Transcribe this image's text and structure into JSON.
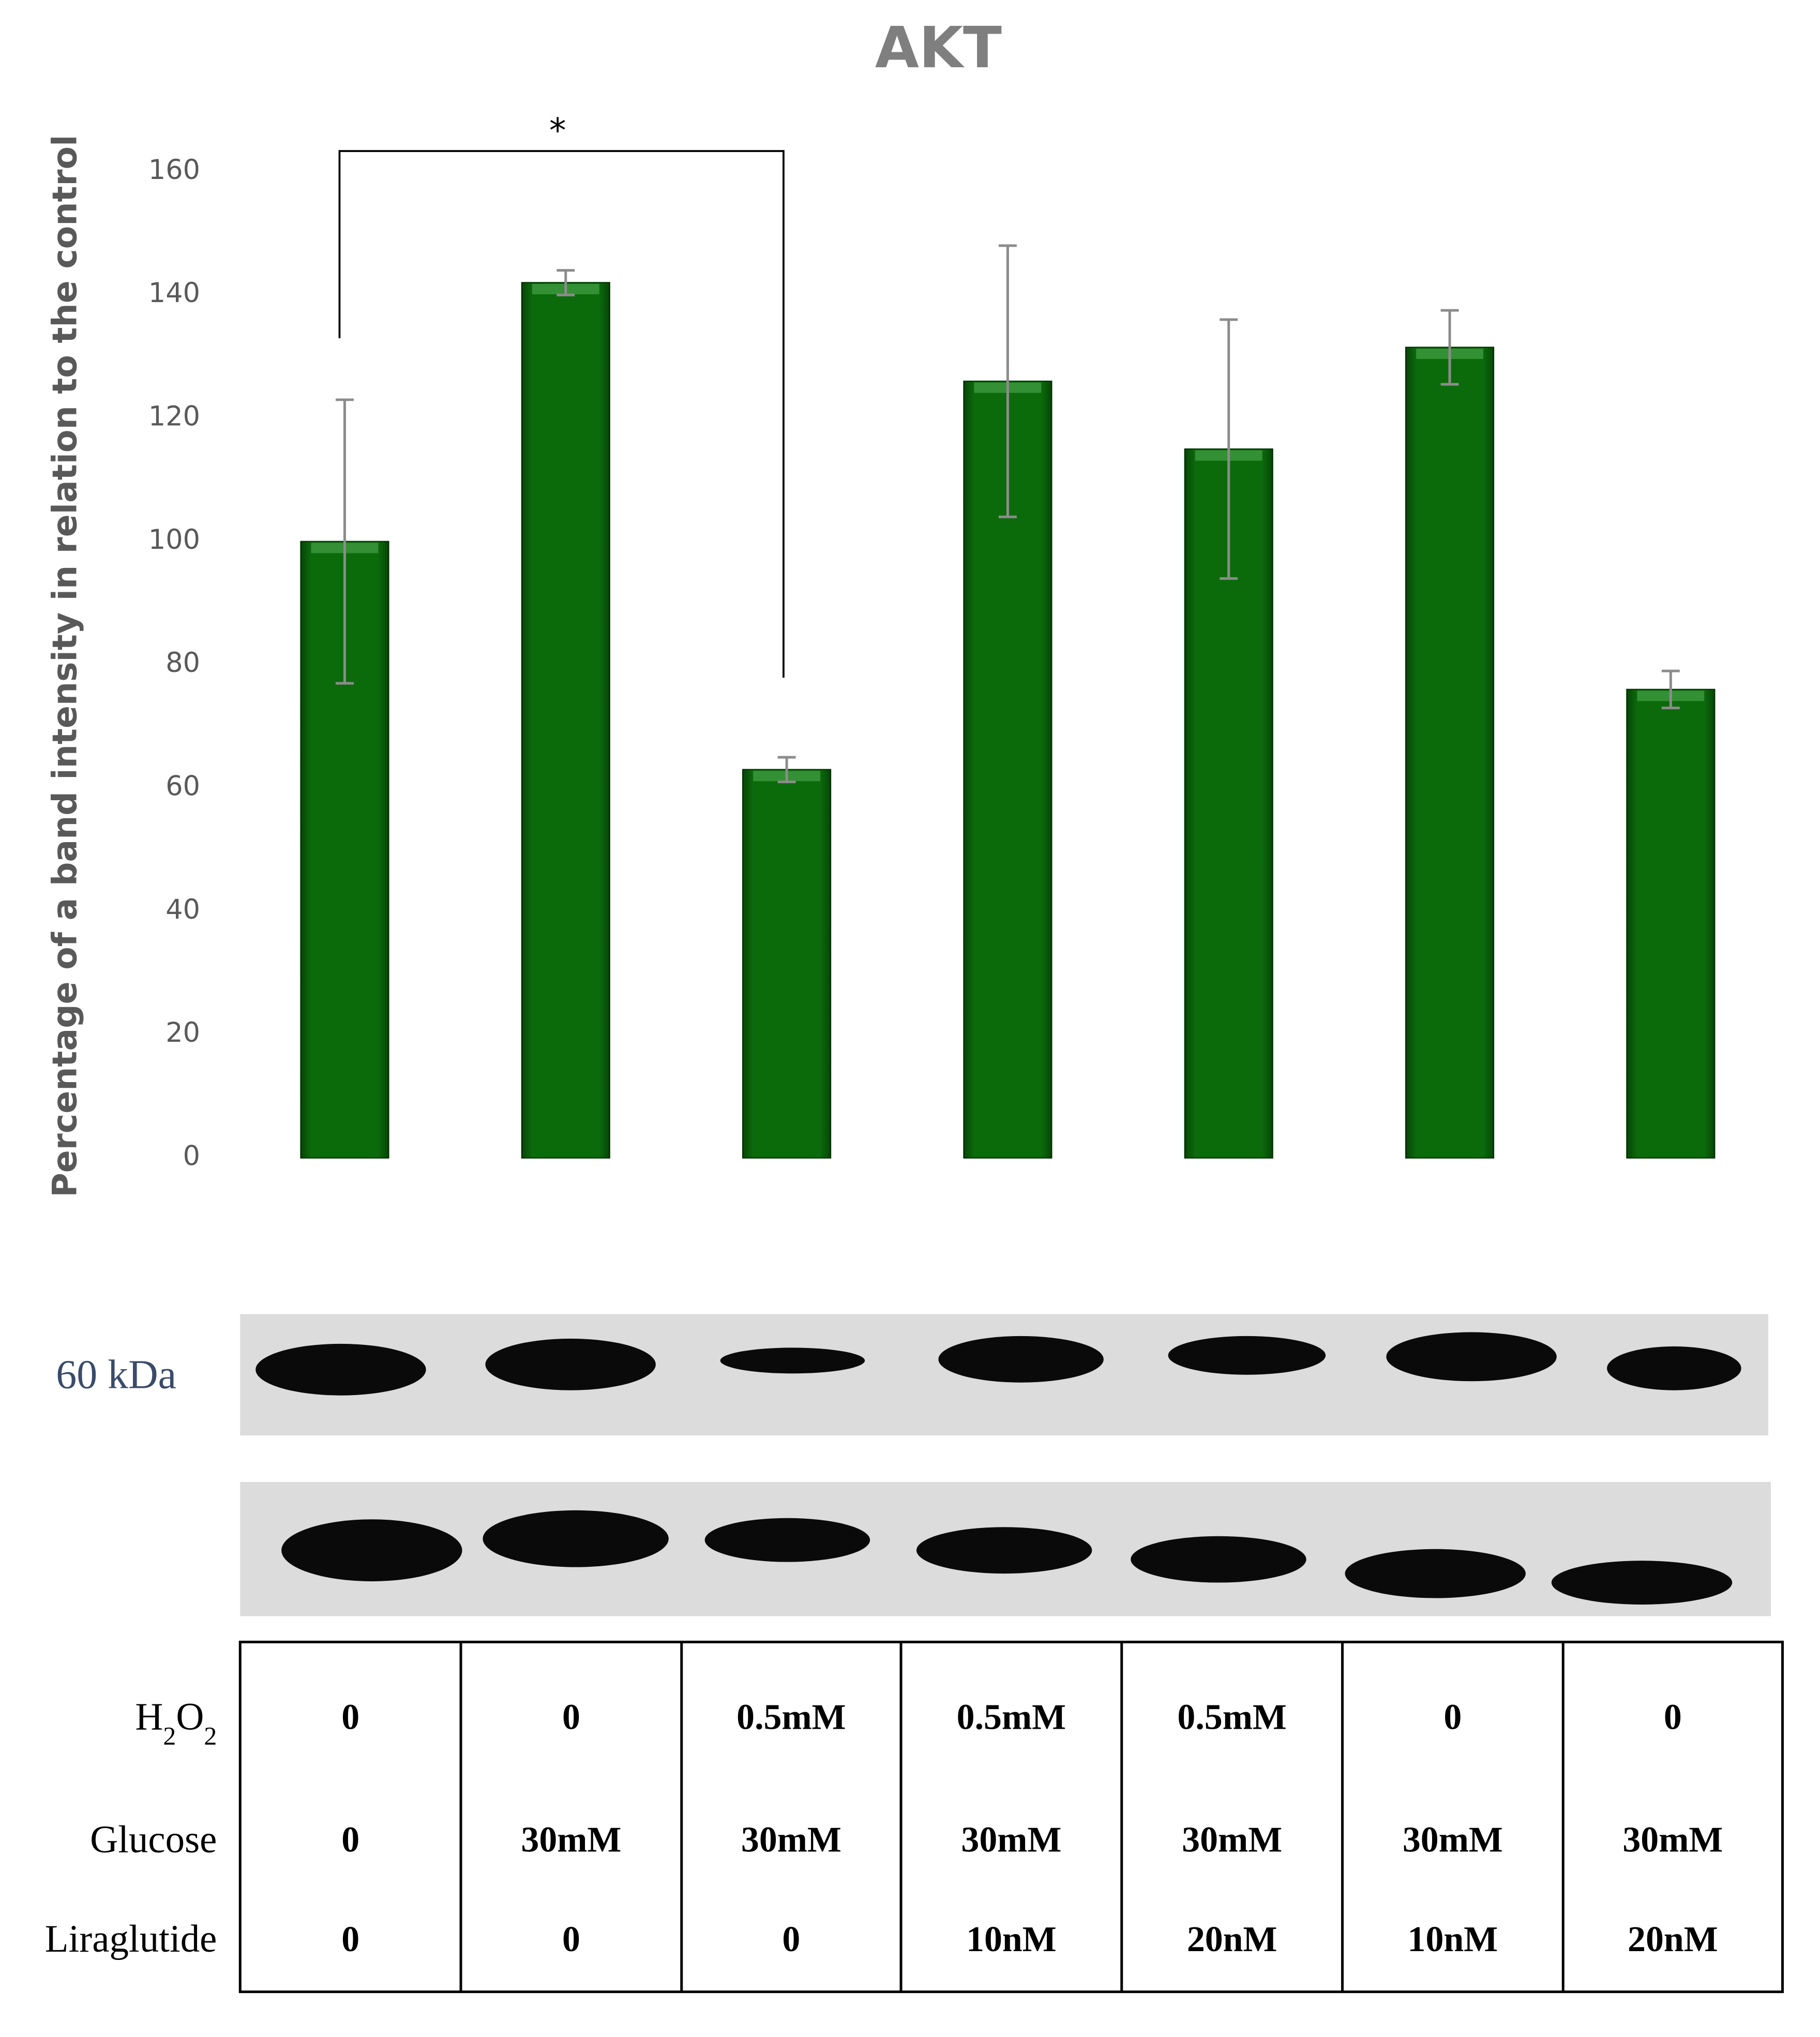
{
  "chart_data": {
    "type": "bar",
    "title": "AKT",
    "y_label": "Percentage of a band intensity in relation to the control",
    "categories": [
      null,
      null,
      null,
      null,
      null,
      null,
      null
    ],
    "values": [
      100,
      142,
      63,
      126,
      115,
      131.5,
      76
    ],
    "errors": [
      23,
      2,
      2,
      22,
      21,
      6,
      3
    ],
    "color": "#0b6b0b",
    "ylim": [
      0,
      160
    ],
    "yticks": [
      0,
      20,
      40,
      60,
      80,
      100,
      120,
      140,
      160
    ],
    "annotation": "*"
  },
  "blot": {
    "label": "60 kDa"
  },
  "table": {
    "rows": [
      {
        "label_parts": [
          "H",
          "2",
          "O",
          "2"
        ],
        "cells": [
          "0",
          "0",
          "0.5mM",
          "0.5mM",
          "0.5mM",
          "0",
          "0"
        ]
      },
      {
        "label": "Glucose",
        "cells": [
          "0",
          "30mM",
          "30mM",
          "30mM",
          "30mM",
          "30mM",
          "30mM"
        ]
      },
      {
        "label": "Liraglutide",
        "cells": [
          "0",
          "0",
          "0",
          "10nM",
          "20nM",
          "10nM",
          "20nM"
        ]
      }
    ]
  }
}
